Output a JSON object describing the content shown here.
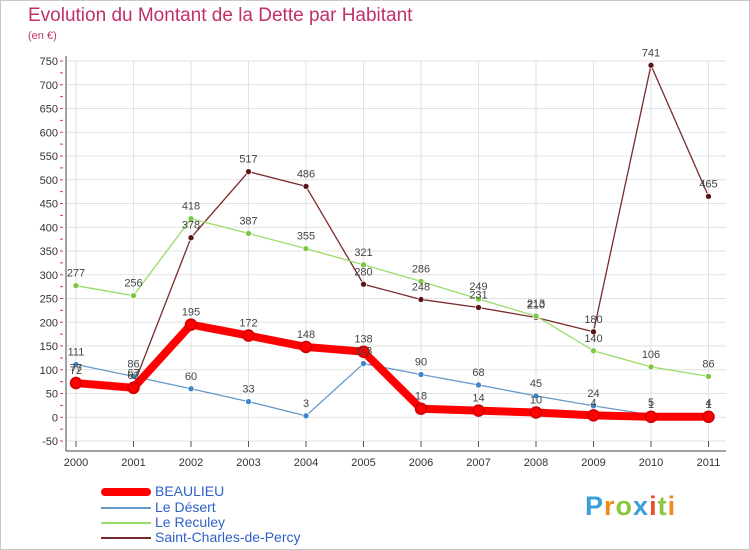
{
  "header": {
    "title": "Evolution du Montant de la Dette par Habitant",
    "subtitle": "(en €)"
  },
  "logo": {
    "text": "Proxiti",
    "letters": [
      "P",
      "r",
      "o",
      "x",
      "i",
      "t",
      "i"
    ],
    "colors": [
      "#3aa0d8",
      "#f08a1c",
      "#8cc63f",
      "#3aa0d8",
      "#e8502a",
      "#8cc63f",
      "#f08a1c"
    ]
  },
  "chart_data": {
    "type": "line",
    "title": "Evolution du Montant de la Dette par Habitant",
    "subtitle": "(en €)",
    "xlabel": "",
    "ylabel": "",
    "x": [
      "2000",
      "2001",
      "2002",
      "2003",
      "2004",
      "2005",
      "2006",
      "2007",
      "2008",
      "2009",
      "2010",
      "2011"
    ],
    "ylim": [
      -50,
      750
    ],
    "yticks": [
      -50,
      0,
      50,
      100,
      150,
      200,
      250,
      300,
      350,
      400,
      450,
      500,
      550,
      600,
      650,
      700,
      750
    ],
    "grid": true,
    "legend": "bottom-left",
    "series": [
      {
        "name": "Saint-Charles-de-Percy",
        "color": "#7a2a2a",
        "marker": "#5c1414",
        "width": 1.3,
        "values": [
          77,
          67,
          378,
          517,
          486,
          280,
          248,
          231,
          210,
          180,
          741,
          465
        ]
      },
      {
        "name": "Le Reculey",
        "color": "#99dd66",
        "marker": "#7cc845",
        "width": 1.3,
        "values": [
          277,
          256,
          418,
          387,
          355,
          321,
          286,
          249,
          213,
          140,
          106,
          86
        ]
      },
      {
        "name": "Le Désert",
        "color": "#6699cc",
        "marker": "#3f86c8",
        "width": 1.3,
        "values": [
          111,
          86,
          60,
          33,
          3,
          113,
          90,
          68,
          45,
          24,
          5,
          4
        ]
      },
      {
        "name": "BEAULIEU",
        "color": "#ff0000",
        "marker": "#ff0000",
        "width": 8,
        "values": [
          72,
          62,
          195,
          172,
          148,
          138,
          18,
          14,
          10,
          4,
          1,
          1
        ]
      }
    ],
    "labels": [
      {
        "series": "BEAULIEU",
        "values": [
          72,
          62,
          195,
          172,
          148,
          138,
          18,
          14,
          10,
          4,
          1,
          1
        ],
        "print": [
          "72",
          "62",
          "195",
          "172",
          "148",
          "138",
          "18",
          "14",
          "10",
          "4",
          "1",
          "1"
        ]
      },
      {
        "series": "Le Désert",
        "print": [
          "111",
          "86",
          "60",
          "33",
          "3",
          "113",
          "90",
          "68",
          "45",
          "24",
          "5",
          "4"
        ]
      },
      {
        "series": "Le Reculey",
        "print": [
          "277",
          "256",
          "418",
          "387",
          "355",
          "321",
          "286",
          "249",
          "213",
          "140",
          "106",
          "86"
        ]
      },
      {
        "series": "Saint-Charles-de-Percy",
        "print": [
          "77",
          "67",
          "378",
          "517",
          "486",
          "280",
          "248",
          "231",
          "210",
          "180",
          "741",
          "465"
        ]
      }
    ]
  },
  "legend": {
    "items": [
      {
        "name": "BEAULIEU",
        "color": "#ff0000",
        "text_color": "#2f5fc8",
        "thickness": 8
      },
      {
        "name": "Le Désert",
        "color": "#6699cc",
        "text_color": "#2f5fc8",
        "thickness": 2
      },
      {
        "name": "Le Reculey",
        "color": "#99dd66",
        "text_color": "#2f5fc8",
        "thickness": 2
      },
      {
        "name": "Saint-Charles-de-Percy",
        "color": "#7a2a2a",
        "text_color": "#2f5fc8",
        "thickness": 2
      }
    ]
  }
}
